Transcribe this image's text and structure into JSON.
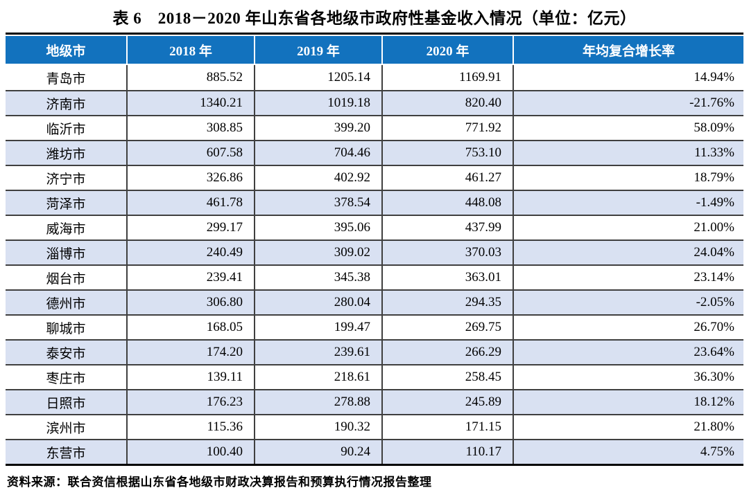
{
  "title": "表 6　2018－2020 年山东省各地级市政府性基金收入情况（单位：亿元）",
  "table": {
    "columns": [
      "地级市",
      "2018 年",
      "2019 年",
      "2020 年",
      "年均复合增长率"
    ],
    "rows": [
      [
        "青岛市",
        "885.52",
        "1205.14",
        "1169.91",
        "14.94%"
      ],
      [
        "济南市",
        "1340.21",
        "1019.18",
        "820.40",
        "-21.76%"
      ],
      [
        "临沂市",
        "308.85",
        "399.20",
        "771.92",
        "58.09%"
      ],
      [
        "潍坊市",
        "607.58",
        "704.46",
        "753.10",
        "11.33%"
      ],
      [
        "济宁市",
        "326.86",
        "402.92",
        "461.27",
        "18.79%"
      ],
      [
        "菏泽市",
        "461.78",
        "378.54",
        "448.08",
        "-1.49%"
      ],
      [
        "威海市",
        "299.17",
        "395.06",
        "437.99",
        "21.00%"
      ],
      [
        "淄博市",
        "240.49",
        "309.02",
        "370.03",
        "24.04%"
      ],
      [
        "烟台市",
        "239.41",
        "345.38",
        "363.01",
        "23.14%"
      ],
      [
        "德州市",
        "306.80",
        "280.04",
        "294.35",
        "-2.05%"
      ],
      [
        "聊城市",
        "168.05",
        "199.47",
        "269.75",
        "26.70%"
      ],
      [
        "泰安市",
        "174.20",
        "239.61",
        "266.29",
        "23.64%"
      ],
      [
        "枣庄市",
        "139.11",
        "218.61",
        "258.45",
        "36.30%"
      ],
      [
        "日照市",
        "176.23",
        "278.88",
        "245.89",
        "18.12%"
      ],
      [
        "滨州市",
        "115.36",
        "190.32",
        "171.15",
        "21.80%"
      ],
      [
        "东营市",
        "100.40",
        "90.24",
        "110.17",
        "4.75%"
      ]
    ]
  },
  "source_note": "资料来源：联合资信根据山东省各地级市财政决算报告和预算执行情况报告整理",
  "colors": {
    "header_bg": "#1272BE",
    "header_text": "#FFFFFF",
    "alt_row_bg": "#D9E1F2",
    "border": "#3F3F3F",
    "outer_border": "#000000"
  },
  "chart_data": {
    "type": "table",
    "title": "表 6　2018－2020 年山东省各地级市政府性基金收入情况（单位：亿元）",
    "categories": [
      "青岛市",
      "济南市",
      "临沂市",
      "潍坊市",
      "济宁市",
      "菏泽市",
      "威海市",
      "淄博市",
      "烟台市",
      "德州市",
      "聊城市",
      "泰安市",
      "枣庄市",
      "日照市",
      "滨州市",
      "东营市"
    ],
    "series": [
      {
        "name": "2018 年",
        "values": [
          885.52,
          1340.21,
          308.85,
          607.58,
          326.86,
          461.78,
          299.17,
          240.49,
          239.41,
          306.8,
          168.05,
          174.2,
          139.11,
          176.23,
          115.36,
          100.4
        ]
      },
      {
        "name": "2019 年",
        "values": [
          1205.14,
          1019.18,
          399.2,
          704.46,
          402.92,
          378.54,
          395.06,
          309.02,
          345.38,
          280.04,
          199.47,
          239.61,
          218.61,
          278.88,
          190.32,
          90.24
        ]
      },
      {
        "name": "2020 年",
        "values": [
          1169.91,
          820.4,
          771.92,
          753.1,
          461.27,
          448.08,
          437.99,
          370.03,
          363.01,
          294.35,
          269.75,
          266.29,
          258.45,
          245.89,
          171.15,
          110.17
        ]
      },
      {
        "name": "年均复合增长率",
        "values": [
          "14.94%",
          "-21.76%",
          "58.09%",
          "11.33%",
          "18.79%",
          "-1.49%",
          "21.00%",
          "24.04%",
          "23.14%",
          "-2.05%",
          "26.70%",
          "23.64%",
          "36.30%",
          "18.12%",
          "21.80%",
          "4.75%"
        ]
      }
    ]
  }
}
